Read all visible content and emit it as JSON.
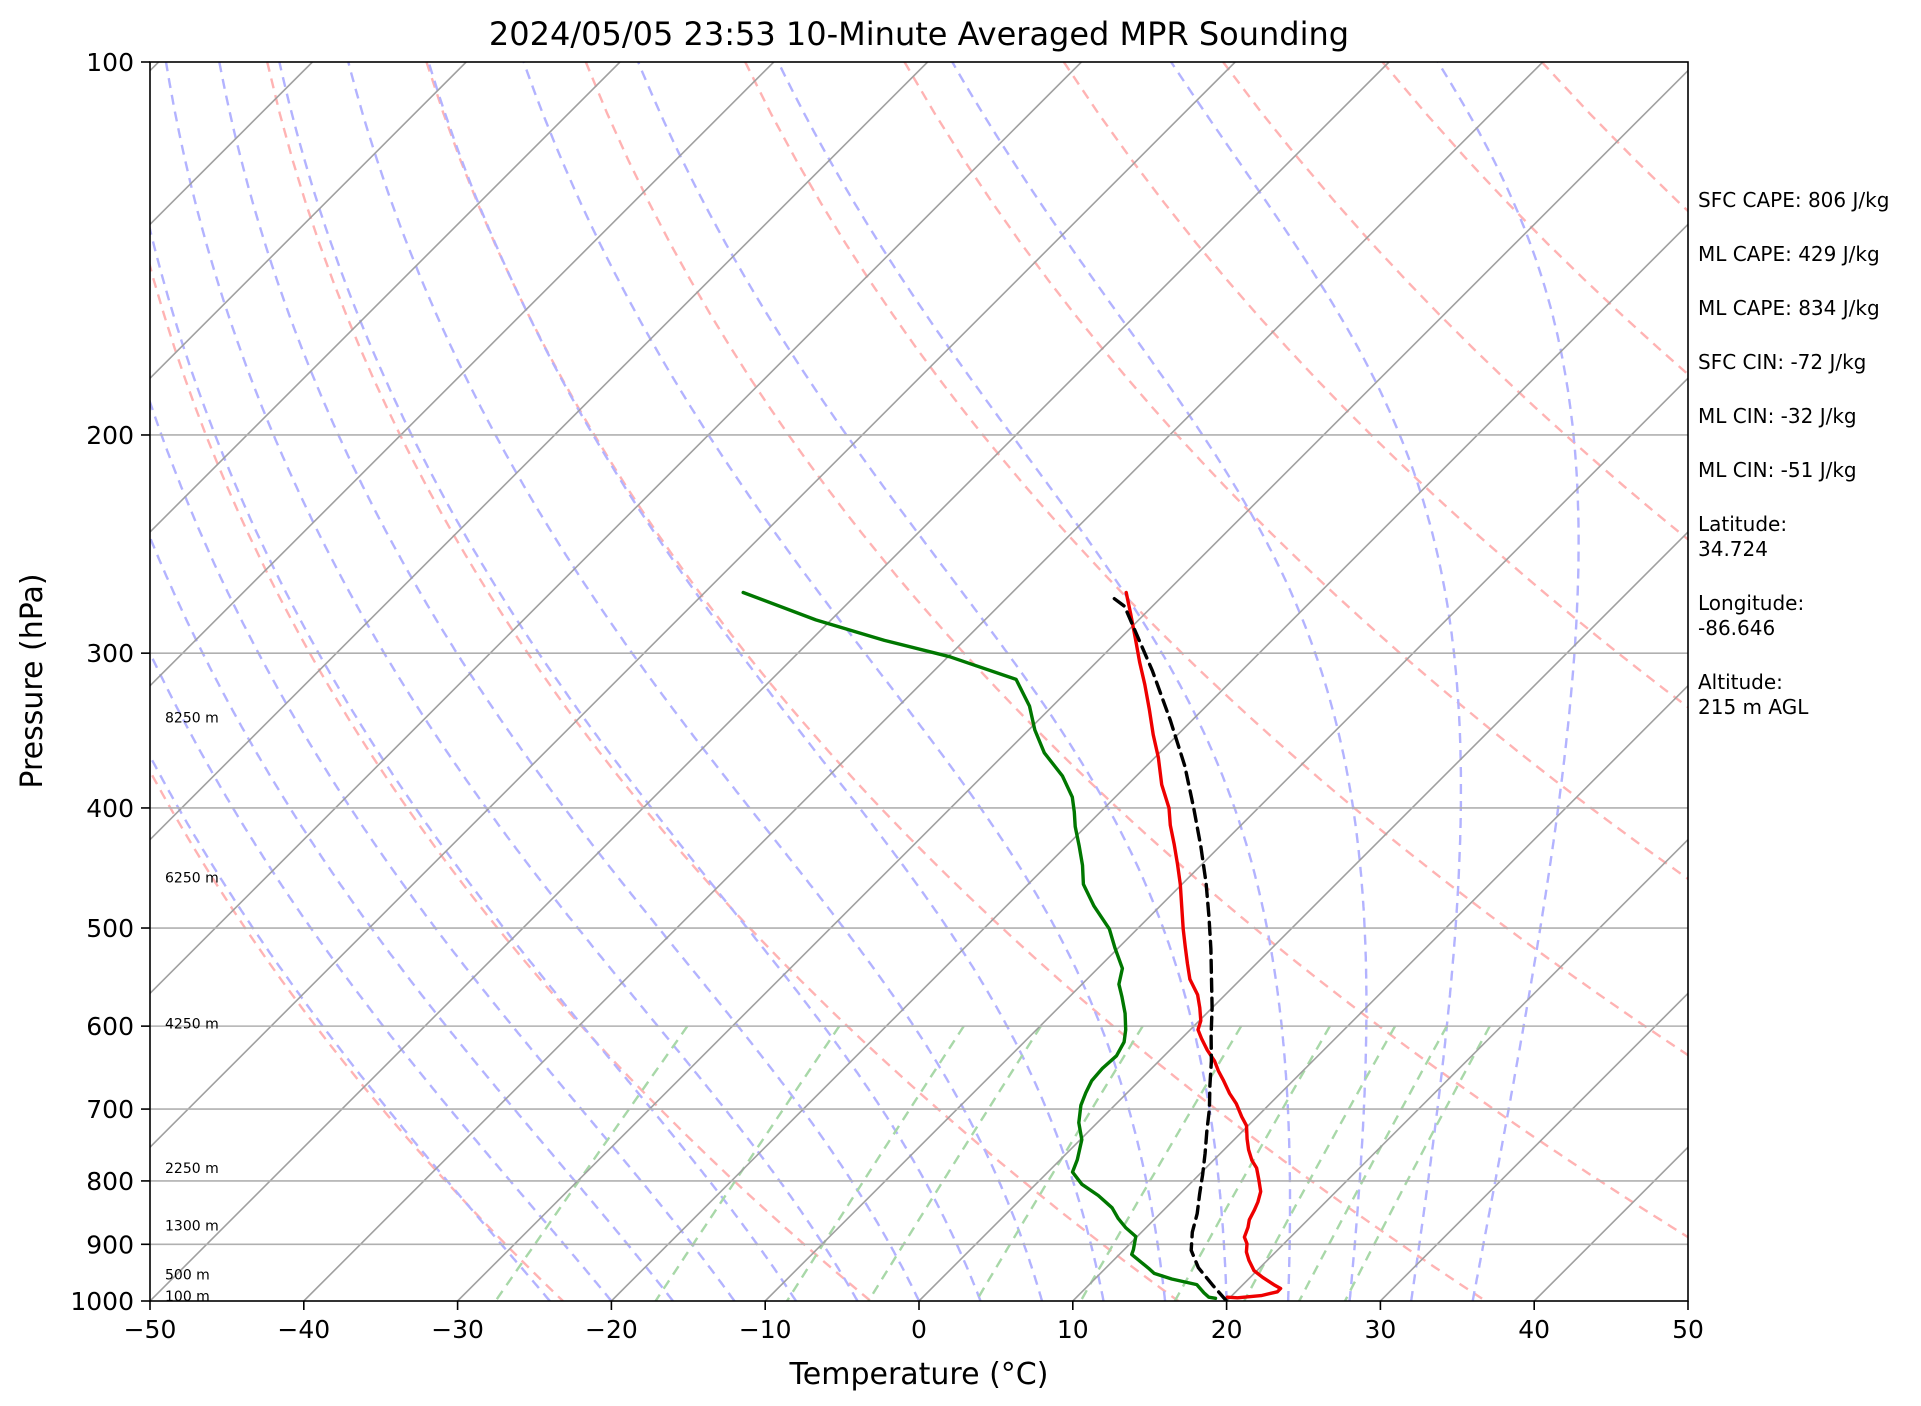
{
  "chart_data": {
    "type": "line",
    "title": "2024/05/05 23:53 10-Minute Averaged MPR Sounding",
    "xlabel": "Temperature (°C)",
    "ylabel": "Pressure (hPa)",
    "xlim": [
      -50,
      50
    ],
    "ylim": [
      1000,
      100
    ],
    "y_scale": "log",
    "x_ticks": [
      "−50",
      "−40",
      "−30",
      "−20",
      "−10",
      "0",
      "10",
      "20",
      "30",
      "40",
      "50"
    ],
    "y_ticks": [
      "100",
      "200",
      "300",
      "400",
      "500",
      "600",
      "700",
      "800",
      "900",
      "1000"
    ],
    "height_labels": [
      {
        "text": "100 m",
        "pressure": 991
      },
      {
        "text": "500 m",
        "pressure": 952
      },
      {
        "text": "1300 m",
        "pressure": 869
      },
      {
        "text": "2250 m",
        "pressure": 781
      },
      {
        "text": "4250 m",
        "pressure": 597
      },
      {
        "text": "6250 m",
        "pressure": 455
      },
      {
        "text": "8250 m",
        "pressure": 338
      }
    ],
    "grid": true,
    "background_lines": {
      "isotherms": {
        "color": "#a0a0a0",
        "style": "solid"
      },
      "dry_adiabats": {
        "color": "#ffb3b3",
        "style": "dashed"
      },
      "moist_adiabats": {
        "color": "#b3b3ff",
        "style": "dashed"
      },
      "mixing_ratio_lines": {
        "color": "#a8d8a8",
        "style": "dashed"
      }
    },
    "series": [
      {
        "key": "temperature",
        "color": "#ee0000",
        "style": "solid",
        "points": [
          [
            19.8,
            993
          ],
          [
            20.5,
            994
          ],
          [
            21.9,
            990
          ],
          [
            22.7,
            983
          ],
          [
            22.7,
            977
          ],
          [
            22.0,
            970
          ],
          [
            20.8,
            957
          ],
          [
            19.8,
            945
          ],
          [
            18.8,
            927
          ],
          [
            18.1,
            913
          ],
          [
            17.6,
            899
          ],
          [
            17.0,
            888
          ],
          [
            16.6,
            872
          ],
          [
            16.2,
            860
          ],
          [
            15.9,
            845
          ],
          [
            15.6,
            832
          ],
          [
            15.1,
            816
          ],
          [
            14.2,
            798
          ],
          [
            13.3,
            781
          ],
          [
            12.5,
            770
          ],
          [
            11.6,
            755
          ],
          [
            10.8,
            740
          ],
          [
            9.9,
            722
          ],
          [
            9.0,
            710
          ],
          [
            7.8,
            693
          ],
          [
            6.7,
            680
          ],
          [
            5.4,
            663
          ],
          [
            4.5,
            652
          ],
          [
            3.6,
            640
          ],
          [
            2.4,
            627
          ],
          [
            1.3,
            614
          ],
          [
            0.5,
            604
          ],
          [
            0.1,
            594
          ],
          [
            -0.8,
            580
          ],
          [
            -1.8,
            566
          ],
          [
            -3.3,
            550
          ],
          [
            -4.5,
            534
          ],
          [
            -5.7,
            518
          ],
          [
            -7.0,
            501
          ],
          [
            -8.6,
            480
          ],
          [
            -10.1,
            461
          ],
          [
            -11.6,
            444
          ],
          [
            -13.1,
            428
          ],
          [
            -14.6,
            413
          ],
          [
            -15.8,
            400
          ],
          [
            -17.8,
            383
          ],
          [
            -19.8,
            364
          ],
          [
            -21.6,
            349
          ],
          [
            -23.5,
            333
          ],
          [
            -25.4,
            318
          ],
          [
            -27.2,
            305
          ],
          [
            -29.0,
            292
          ],
          [
            -30.9,
            279
          ],
          [
            -32.6,
            268
          ]
        ]
      },
      {
        "key": "dewpoint",
        "color": "#007700",
        "style": "solid",
        "points": [
          [
            19.1,
            995
          ],
          [
            18.6,
            993
          ],
          [
            18.0,
            985
          ],
          [
            17.0,
            970
          ],
          [
            15.0,
            960
          ],
          [
            13.5,
            950
          ],
          [
            12.8,
            941
          ],
          [
            10.8,
            917
          ],
          [
            10.6,
            909
          ],
          [
            9.9,
            887
          ],
          [
            8.7,
            873
          ],
          [
            7.6,
            858
          ],
          [
            6.5,
            841
          ],
          [
            4.8,
            822
          ],
          [
            3.0,
            805
          ],
          [
            1.6,
            787
          ],
          [
            1.1,
            769
          ],
          [
            0.1,
            741
          ],
          [
            -1.2,
            718
          ],
          [
            -2.2,
            695
          ],
          [
            -2.7,
            679
          ],
          [
            -3.1,
            664
          ],
          [
            -3.2,
            649
          ],
          [
            -3.1,
            634
          ],
          [
            -3.5,
            618
          ],
          [
            -4.2,
            604
          ],
          [
            -5.3,
            586
          ],
          [
            -6.6,
            568
          ],
          [
            -7.6,
            555
          ],
          [
            -8.4,
            539
          ],
          [
            -10.2,
            519
          ],
          [
            -11.8,
            501
          ],
          [
            -14.3,
            480
          ],
          [
            -16.4,
            461
          ],
          [
            -17.7,
            445
          ],
          [
            -19.2,
            429
          ],
          [
            -20.7,
            414
          ],
          [
            -21.7,
            403
          ],
          [
            -22.8,
            392
          ],
          [
            -24.8,
            377
          ],
          [
            -27.5,
            361
          ],
          [
            -29.6,
            346
          ],
          [
            -31.5,
            331
          ],
          [
            -34.1,
            315
          ],
          [
            -39.9,
            302
          ],
          [
            -45.2,
            293
          ],
          [
            -51.0,
            282
          ],
          [
            -57.5,
            268
          ]
        ]
      },
      {
        "key": "parcel",
        "color": "#000000",
        "style": "dashed",
        "points": [
          [
            20.0,
            1000
          ],
          [
            18.0,
            970
          ],
          [
            16.0,
            940
          ],
          [
            14.4,
            910
          ],
          [
            13.3,
            880
          ],
          [
            12.4,
            850
          ],
          [
            11.3,
            820
          ],
          [
            10.2,
            790
          ],
          [
            9.0,
            760
          ],
          [
            7.7,
            730
          ],
          [
            6.4,
            700
          ],
          [
            4.9,
            670
          ],
          [
            3.4,
            640
          ],
          [
            1.7,
            610
          ],
          [
            0.0,
            580
          ],
          [
            -1.9,
            550
          ],
          [
            -3.9,
            520
          ],
          [
            -6.1,
            490
          ],
          [
            -8.5,
            460
          ],
          [
            -11.2,
            430
          ],
          [
            -14.2,
            400
          ],
          [
            -17.5,
            370
          ],
          [
            -21.4,
            340
          ],
          [
            -25.8,
            310
          ],
          [
            -30.9,
            280
          ],
          [
            -31.8,
            275
          ],
          [
            -33.3,
            270
          ]
        ]
      }
    ]
  },
  "stats": [
    "SFC CAPE: 806 J/kg",
    "ML CAPE: 429 J/kg",
    "ML CAPE: 834 J/kg",
    "SFC CIN: -72 J/kg",
    "ML CIN: -32 J/kg",
    "ML CIN: -51 J/kg",
    "Latitude:\n34.724",
    "Longitude:\n-86.646",
    "Altitude:\n215 m AGL"
  ]
}
